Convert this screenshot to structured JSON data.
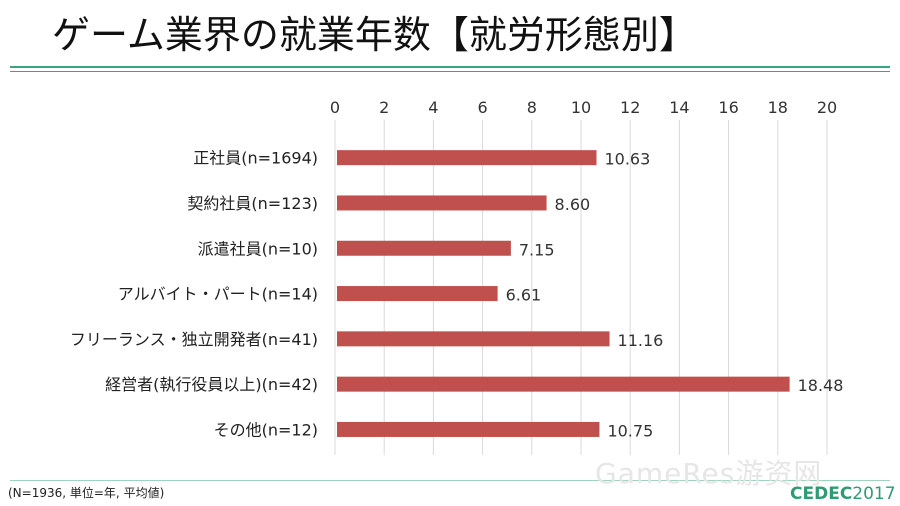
{
  "title": "ゲーム業界の就業年数【就労形態別】",
  "footnote": "(N=1936, 単位=年, 平均値)",
  "watermark": "GameRes游资网",
  "logo": {
    "brand": "CEDEC",
    "year": "2017"
  },
  "colors": {
    "bar": "#c0504d",
    "rule": "#3aa57f",
    "logo": "#2e9b73",
    "grid": "#d9d9d9"
  },
  "chart_data": {
    "type": "bar",
    "orientation": "horizontal",
    "axis_position": "top",
    "grid": true,
    "categories": [
      "正社員(n=1694)",
      "契約社員(n=123)",
      "派遣社員(n=10)",
      "アルバイト・パート(n=14)",
      "フリーランス・独立開発者(n=41)",
      "経営者(執行役員以上)(n=42)",
      "その他(n=12)"
    ],
    "values": [
      10.63,
      8.6,
      7.15,
      6.61,
      11.16,
      18.48,
      10.75
    ],
    "value_labels": [
      "10.63",
      "8.60",
      "7.15",
      "6.61",
      "11.16",
      "18.48",
      "10.75"
    ],
    "xlim": [
      0,
      20
    ],
    "ticks": [
      0,
      2,
      4,
      6,
      8,
      10,
      12,
      14,
      16,
      18,
      20
    ]
  }
}
